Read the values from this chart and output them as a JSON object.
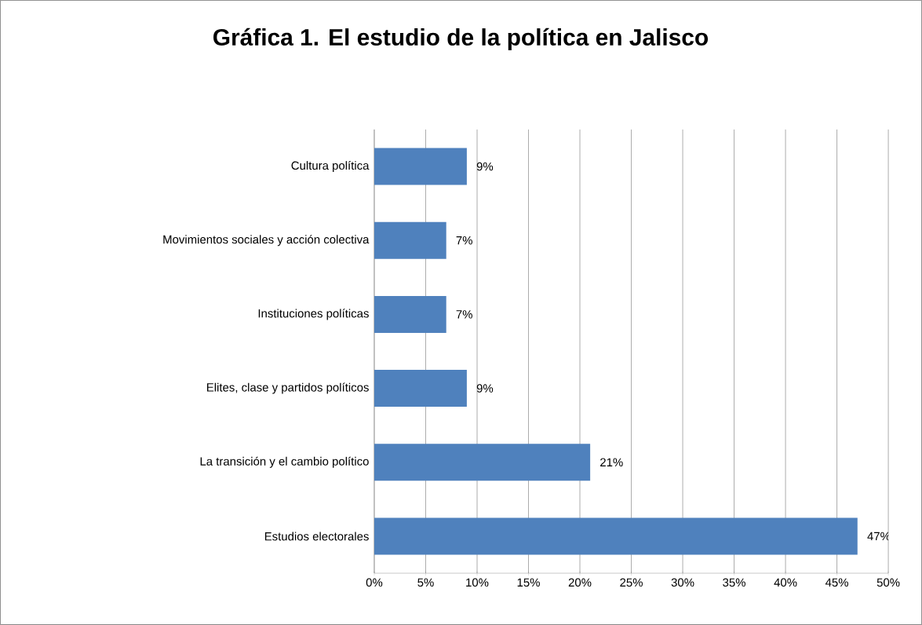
{
  "chart_data": {
    "type": "bar",
    "title": "Gráfica 1. El estudio de la política en Jalisco",
    "orientation": "horizontal",
    "categories": [
      "Cultura política",
      "Movimientos sociales y acción colectiva",
      "Instituciones políticas",
      "Elites, clase y partidos políticos",
      "La transición y el cambio político",
      "Estudios electorales"
    ],
    "values": [
      9,
      7,
      7,
      9,
      21,
      47
    ],
    "color": "#4f81bd",
    "value_labels": [
      "9%",
      "7%",
      "7%",
      "9%",
      "21%",
      "47%"
    ],
    "xlim": [
      0,
      50
    ],
    "xticks": [
      {
        "value": 0,
        "label": "0%"
      },
      {
        "value": 5,
        "label": "5%"
      },
      {
        "value": 10,
        "label": "10%"
      },
      {
        "value": 15,
        "label": "15%"
      },
      {
        "value": 20,
        "label": "20%"
      },
      {
        "value": 25,
        "label": "25%"
      },
      {
        "value": 30,
        "label": "30%"
      },
      {
        "value": 35,
        "label": "35%"
      },
      {
        "value": 40,
        "label": "40%"
      },
      {
        "value": 45,
        "label": "45%"
      },
      {
        "value": 50,
        "label": "50%"
      }
    ],
    "grid": "x"
  }
}
